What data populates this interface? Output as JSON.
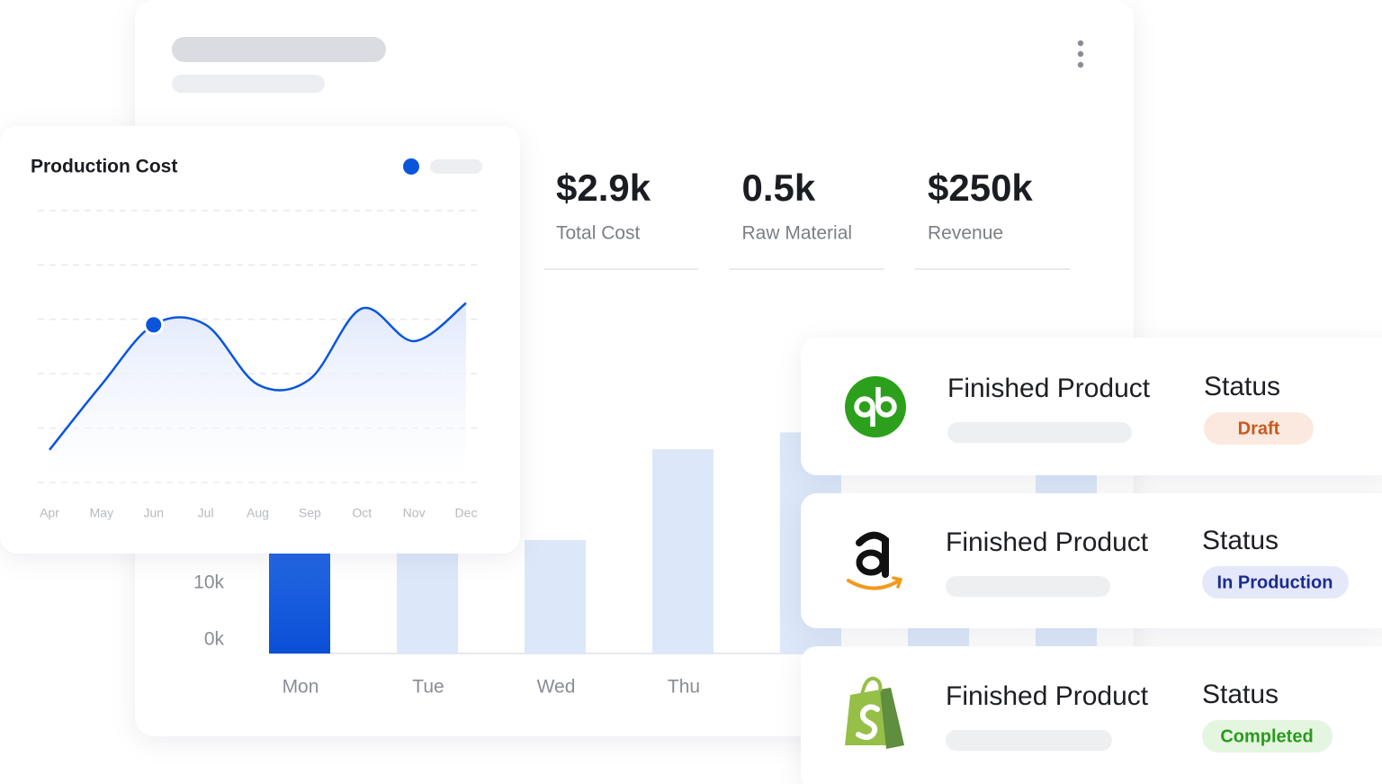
{
  "chart_data": [
    {
      "type": "bar",
      "categories": [
        "Mon",
        "Tue",
        "Wed",
        "Thu",
        null,
        null,
        null
      ],
      "values": [
        24000,
        28000,
        20000,
        36000,
        39000,
        26000,
        42000
      ],
      "colors": [
        "#1458e0",
        "#dce8fa",
        "#dce8fa",
        "#dce8fa",
        "#dce8fa",
        "#dce8fa",
        "#dce8fa"
      ],
      "ylim": [
        0,
        60000
      ],
      "yticks": [
        {
          "value": 0,
          "label": "0k"
        },
        {
          "value": 10000,
          "label": "10k"
        }
      ]
    },
    {
      "type": "line",
      "title": "Production Cost",
      "categories": [
        "Apr",
        "May",
        "Jun",
        "Jul",
        "Aug",
        "Sep",
        "Oct",
        "Nov",
        "Dec"
      ],
      "values": [
        0.6,
        1.8,
        2.9,
        2.9,
        1.8,
        1.9,
        3.2,
        2.6,
        3.3
      ],
      "color": "#0b55dd",
      "ylim": [
        0,
        5
      ],
      "yticks": [
        0,
        1,
        2,
        3,
        4,
        5
      ],
      "grid": true,
      "highlight": "Jun"
    }
  ],
  "kpis": [
    {
      "value": "$2.9k",
      "label": "Total Cost"
    },
    {
      "value": "0.5k",
      "label": "Raw Material"
    },
    {
      "value": "$250k",
      "label": "Revenue"
    }
  ],
  "products": [
    {
      "title": "Finished Product",
      "status_label": "Status",
      "status": "Draft"
    },
    {
      "title": "Finished Product",
      "status_label": "Status",
      "status": "In Production"
    },
    {
      "title": "Finished Product",
      "status_label": "Status",
      "status": "Completed"
    }
  ]
}
